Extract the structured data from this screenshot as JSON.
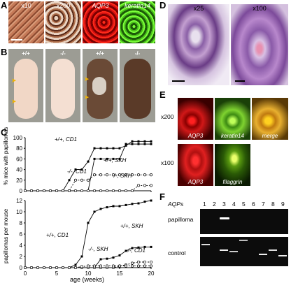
{
  "panels": {
    "a": "A",
    "b": "B",
    "c": "C",
    "d": "D",
    "e": "E",
    "f": "F"
  },
  "a": {
    "tiles": [
      {
        "label": "x10",
        "color": "#b8674a"
      },
      {
        "label": "x200",
        "color": "#6e3a26"
      },
      {
        "label": "AQP3",
        "color": "#cc1010"
      },
      {
        "label": "keratin14",
        "color": "#3fa31c"
      }
    ]
  },
  "b": {
    "genotypes": [
      "+/+",
      "-/-",
      "+/+",
      "-/-"
    ]
  },
  "d": {
    "labels": [
      "x25",
      "x100"
    ]
  },
  "e": {
    "row_labels": [
      "x200",
      "x100"
    ],
    "tile_labels": [
      "AQP3",
      "keratin14",
      "merge",
      "AQP3",
      "filaggrin"
    ]
  },
  "c": {
    "top": {
      "ylabel": "% mice with papillomas",
      "yticks": [
        "0",
        "20",
        "40",
        "60",
        "80",
        "100"
      ],
      "series_labels": [
        "+/+, CD1",
        "+/+, SKH",
        "-/-, CD1",
        "-/-, SKH"
      ]
    },
    "bottom": {
      "ylabel": "papillomas per mouse",
      "yticks": [
        "0",
        "2",
        "4",
        "6",
        "8",
        "10",
        "12"
      ],
      "series_labels": [
        "+/+, CD1",
        "+/+, SKH",
        "-/-, SKH",
        "-/-, CD1"
      ]
    },
    "xlabel": "age (weeks)",
    "xticks": [
      "0",
      "5",
      "10",
      "15",
      "20"
    ]
  },
  "chart_data": [
    {
      "type": "line",
      "title": "",
      "xlabel": "",
      "ylabel": "% mice with papillomas",
      "xlim": [
        0,
        20
      ],
      "ylim": [
        0,
        100
      ],
      "series": [
        {
          "name": "+/+, CD1",
          "x": [
            0,
            1,
            2,
            3,
            4,
            5,
            6,
            7,
            8,
            9,
            10,
            11,
            12,
            13,
            14,
            15,
            16,
            17,
            18,
            19,
            20
          ],
          "y": [
            0,
            0,
            0,
            0,
            0,
            0,
            0,
            20,
            40,
            40,
            55,
            80,
            80,
            80,
            80,
            80,
            85,
            93,
            93,
            93,
            93
          ]
        },
        {
          "name": "+/+, SKH",
          "x": [
            0,
            1,
            2,
            3,
            4,
            5,
            6,
            7,
            8,
            9,
            10,
            11,
            12,
            13,
            14,
            15,
            16,
            17,
            18,
            19,
            20
          ],
          "y": [
            0,
            0,
            0,
            0,
            0,
            0,
            0,
            0,
            0,
            0,
            0,
            60,
            60,
            60,
            60,
            60,
            88,
            88,
            88,
            88,
            88
          ]
        },
        {
          "name": "-/-, CD1",
          "x": [
            0,
            1,
            2,
            3,
            4,
            5,
            6,
            7,
            8,
            9,
            10,
            11,
            12,
            13,
            14,
            15,
            16,
            17,
            18,
            19,
            20
          ],
          "y": [
            0,
            0,
            0,
            0,
            0,
            0,
            0,
            0,
            20,
            20,
            20,
            30,
            30,
            30,
            30,
            30,
            30,
            30,
            30,
            30,
            30
          ]
        },
        {
          "name": "-/-, SKH",
          "x": [
            0,
            1,
            2,
            3,
            4,
            5,
            6,
            7,
            8,
            9,
            10,
            11,
            12,
            13,
            14,
            15,
            16,
            17,
            18,
            19,
            20
          ],
          "y": [
            0,
            0,
            0,
            0,
            0,
            0,
            0,
            0,
            0,
            0,
            0,
            0,
            0,
            0,
            0,
            0,
            0,
            0,
            10,
            10,
            10
          ]
        }
      ]
    },
    {
      "type": "line",
      "title": "",
      "xlabel": "age (weeks)",
      "ylabel": "papillomas per mouse",
      "xlim": [
        0,
        20
      ],
      "ylim": [
        0,
        12
      ],
      "series": [
        {
          "name": "+/+, CD1",
          "x": [
            0,
            1,
            2,
            3,
            4,
            5,
            6,
            7,
            8,
            9,
            10,
            11,
            12,
            13,
            14,
            15,
            16,
            17,
            18,
            19,
            20
          ],
          "y": [
            0,
            0,
            0,
            0,
            0,
            0,
            0,
            0,
            0.5,
            2,
            8,
            10,
            10.5,
            10.8,
            11,
            11,
            11.2,
            11.4,
            11.5,
            11.8,
            12
          ]
        },
        {
          "name": "+/+, SKH",
          "x": [
            0,
            1,
            2,
            3,
            4,
            5,
            6,
            7,
            8,
            9,
            10,
            11,
            12,
            13,
            14,
            15,
            16,
            17,
            18,
            19,
            20
          ],
          "y": [
            0,
            0,
            0,
            0,
            0,
            0,
            0,
            0,
            0,
            0,
            0,
            0,
            1.5,
            1.6,
            1.8,
            2.2,
            3,
            3.5,
            3.6,
            3.7,
            3.7
          ]
        },
        {
          "name": "-/-, SKH",
          "x": [
            0,
            1,
            2,
            3,
            4,
            5,
            6,
            7,
            8,
            9,
            10,
            11,
            12,
            13,
            14,
            15,
            16,
            17,
            18,
            19,
            20
          ],
          "y": [
            0,
            0,
            0,
            0,
            0,
            0,
            0,
            0,
            0,
            0,
            0,
            0,
            0,
            0,
            0,
            0.3,
            0.5,
            0.8,
            1.0,
            1.0,
            1.0
          ]
        },
        {
          "name": "-/-, CD1",
          "x": [
            0,
            1,
            2,
            3,
            4,
            5,
            6,
            7,
            8,
            9,
            10,
            11,
            12,
            13,
            14,
            15,
            16,
            17,
            18,
            19,
            20
          ],
          "y": [
            0,
            0,
            0,
            0,
            0,
            0,
            0,
            0,
            0,
            0.2,
            0.3,
            0.3,
            0.3,
            0.3,
            0.3,
            0.3,
            0.3,
            0.3,
            0.3,
            0.3,
            0.3
          ]
        }
      ]
    }
  ],
  "f": {
    "header": "AQPs",
    "lanes": [
      "1",
      "2",
      "3",
      "4",
      "5",
      "6",
      "7",
      "8",
      "9"
    ],
    "rows": [
      "papilloma",
      "control"
    ]
  }
}
